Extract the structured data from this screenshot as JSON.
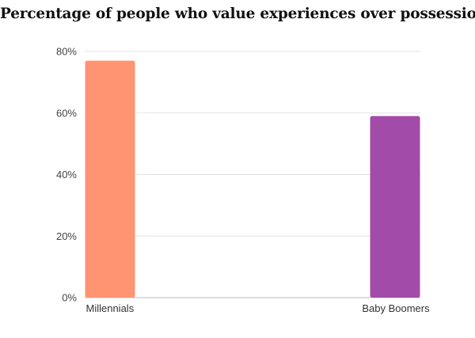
{
  "chart_data": {
    "type": "bar",
    "title": "Percentage of people who value experiences over possessions",
    "categories": [
      "Millennials",
      "Baby Boomers"
    ],
    "values": [
      77,
      59
    ],
    "colors": [
      "#ff9473",
      "#a24ba8"
    ],
    "ylim": [
      0,
      80
    ],
    "yticks": [
      0,
      20,
      40,
      60,
      80
    ],
    "ytick_labels": [
      "0%",
      "20%",
      "40%",
      "60%",
      "80%"
    ],
    "xlabel": "",
    "ylabel": "",
    "grid": true,
    "legend": "none"
  }
}
